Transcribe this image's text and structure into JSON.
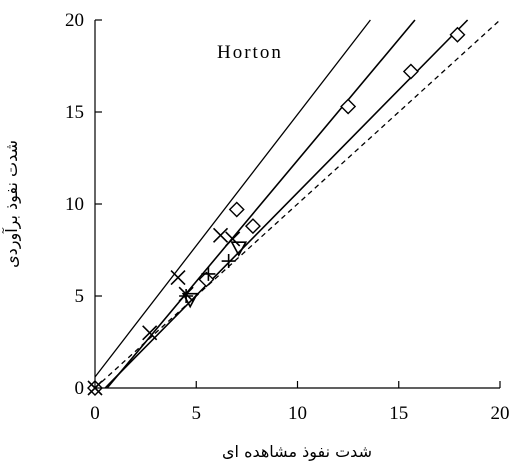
{
  "chart_data": {
    "type": "scatter",
    "title": "",
    "xlabel": "شدت نفوذ مشاهده ای",
    "ylabel": "شدت نفوذ برآوردی",
    "xlim": [
      0,
      20
    ],
    "ylim": [
      0,
      20
    ],
    "x_ticks": [
      "0",
      "5",
      "10",
      "15",
      "20"
    ],
    "y_ticks": [
      "0",
      "5",
      "10",
      "15",
      "20"
    ],
    "annotation": "Horton",
    "grid": false,
    "reference_line": {
      "style": "dashed",
      "x": [
        0,
        20
      ],
      "y": [
        0,
        20
      ]
    },
    "series": [
      {
        "marker": "diamond",
        "points": [
          {
            "x": 0,
            "y": 0
          },
          {
            "x": 5.5,
            "y": 5.9
          },
          {
            "x": 7.0,
            "y": 9.7
          },
          {
            "x": 7.8,
            "y": 8.8
          },
          {
            "x": 12.5,
            "y": 15.3
          },
          {
            "x": 15.6,
            "y": 17.2
          },
          {
            "x": 17.9,
            "y": 19.2
          }
        ],
        "fit_line": {
          "x": [
            0.5,
            18.4
          ],
          "y": [
            0,
            20
          ]
        }
      },
      {
        "marker": "x",
        "points": [
          {
            "x": 0,
            "y": 0
          },
          {
            "x": 2.7,
            "y": 3.0
          },
          {
            "x": 4.1,
            "y": 6.0
          },
          {
            "x": 4.5,
            "y": 5.1
          },
          {
            "x": 6.2,
            "y": 8.3
          },
          {
            "x": 6.8,
            "y": 8.1
          }
        ],
        "fit_line": {
          "x": [
            0,
            13.6
          ],
          "y": [
            0.6,
            20
          ]
        }
      },
      {
        "marker": "triangle-down",
        "points": [
          {
            "x": 4.7,
            "y": 4.8
          },
          {
            "x": 7.1,
            "y": 7.6
          }
        ],
        "fit_line": {
          "x": [
            0.6,
            15.8
          ],
          "y": [
            0,
            20
          ]
        }
      },
      {
        "marker": "plus",
        "points": [
          {
            "x": 4.5,
            "y": 5.0
          },
          {
            "x": 5.6,
            "y": 6.2
          },
          {
            "x": 6.6,
            "y": 6.9
          }
        ]
      }
    ]
  }
}
